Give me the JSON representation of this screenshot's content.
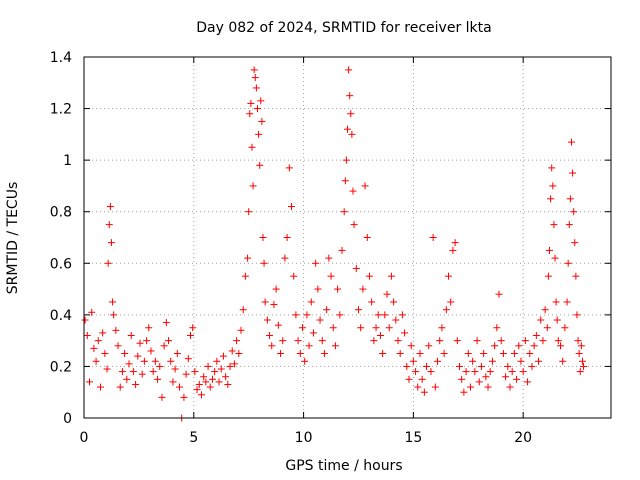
{
  "chart_data": {
    "type": "scatter",
    "title": "Day 082 of 2024, SRMTID for receiver lkta",
    "xlabel": "GPS time / hours",
    "ylabel": "SRMTID / TECUs",
    "xlim": [
      0,
      24
    ],
    "ylim": [
      0,
      1.4
    ],
    "xticks": [
      0,
      5,
      10,
      15,
      20
    ],
    "xtick_labels": [
      "0",
      "5",
      "10",
      "15",
      "20"
    ],
    "yticks": [
      0,
      0.2,
      0.4,
      0.6,
      0.8,
      1.0,
      1.2,
      1.4
    ],
    "ytick_labels": [
      "0",
      "0.2",
      "0.4",
      "0.6",
      "0.8",
      "1",
      "1.2",
      "1.4"
    ],
    "grid": true,
    "marker": "+",
    "color": "#ff0000",
    "series": [
      {
        "name": "SRMTID",
        "points": [
          [
            0.05,
            0.38
          ],
          [
            0.15,
            0.32
          ],
          [
            0.25,
            0.14
          ],
          [
            0.35,
            0.41
          ],
          [
            0.45,
            0.27
          ],
          [
            0.55,
            0.22
          ],
          [
            0.65,
            0.3
          ],
          [
            0.75,
            0.12
          ],
          [
            0.85,
            0.33
          ],
          [
            0.95,
            0.25
          ],
          [
            1.05,
            0.19
          ],
          [
            1.1,
            0.6
          ],
          [
            1.15,
            0.75
          ],
          [
            1.2,
            0.82
          ],
          [
            1.25,
            0.68
          ],
          [
            1.3,
            0.45
          ],
          [
            1.35,
            0.4
          ],
          [
            1.45,
            0.34
          ],
          [
            1.55,
            0.28
          ],
          [
            1.65,
            0.12
          ],
          [
            1.75,
            0.18
          ],
          [
            1.85,
            0.25
          ],
          [
            1.95,
            0.15
          ],
          [
            2.05,
            0.21
          ],
          [
            2.15,
            0.32
          ],
          [
            2.25,
            0.18
          ],
          [
            2.35,
            0.13
          ],
          [
            2.45,
            0.24
          ],
          [
            2.55,
            0.29
          ],
          [
            2.65,
            0.17
          ],
          [
            2.75,
            0.22
          ],
          [
            2.85,
            0.3
          ],
          [
            2.95,
            0.35
          ],
          [
            3.05,
            0.26
          ],
          [
            3.15,
            0.18
          ],
          [
            3.25,
            0.22
          ],
          [
            3.35,
            0.15
          ],
          [
            3.45,
            0.2
          ],
          [
            3.55,
            0.08
          ],
          [
            3.65,
            0.28
          ],
          [
            3.75,
            0.37
          ],
          [
            3.85,
            0.3
          ],
          [
            3.95,
            0.22
          ],
          [
            4.05,
            0.14
          ],
          [
            4.15,
            0.19
          ],
          [
            4.25,
            0.25
          ],
          [
            4.35,
            0.12
          ],
          [
            4.45,
            0.0
          ],
          [
            4.55,
            0.08
          ],
          [
            4.65,
            0.17
          ],
          [
            4.75,
            0.23
          ],
          [
            4.85,
            0.32
          ],
          [
            4.95,
            0.35
          ],
          [
            5.05,
            0.18
          ],
          [
            5.15,
            0.11
          ],
          [
            5.25,
            0.13
          ],
          [
            5.35,
            0.09
          ],
          [
            5.45,
            0.16
          ],
          [
            5.55,
            0.14
          ],
          [
            5.65,
            0.2
          ],
          [
            5.75,
            0.12
          ],
          [
            5.85,
            0.15
          ],
          [
            5.95,
            0.18
          ],
          [
            6.05,
            0.22
          ],
          [
            6.15,
            0.14
          ],
          [
            6.25,
            0.19
          ],
          [
            6.35,
            0.24
          ],
          [
            6.45,
            0.16
          ],
          [
            6.55,
            0.13
          ],
          [
            6.65,
            0.2
          ],
          [
            6.75,
            0.26
          ],
          [
            6.85,
            0.21
          ],
          [
            6.95,
            0.3
          ],
          [
            7.05,
            0.25
          ],
          [
            7.15,
            0.34
          ],
          [
            7.25,
            0.42
          ],
          [
            7.35,
            0.55
          ],
          [
            7.45,
            0.62
          ],
          [
            7.5,
            0.8
          ],
          [
            7.55,
            1.18
          ],
          [
            7.6,
            1.22
          ],
          [
            7.65,
            1.05
          ],
          [
            7.7,
            0.9
          ],
          [
            7.75,
            1.35
          ],
          [
            7.8,
            1.32
          ],
          [
            7.85,
            1.28
          ],
          [
            7.9,
            1.2
          ],
          [
            7.95,
            1.1
          ],
          [
            8.0,
            0.98
          ],
          [
            8.05,
            1.23
          ],
          [
            8.1,
            1.15
          ],
          [
            8.15,
            0.7
          ],
          [
            8.2,
            0.6
          ],
          [
            8.25,
            0.45
          ],
          [
            8.35,
            0.38
          ],
          [
            8.45,
            0.32
          ],
          [
            8.55,
            0.28
          ],
          [
            8.65,
            0.44
          ],
          [
            8.75,
            0.5
          ],
          [
            8.85,
            0.36
          ],
          [
            8.95,
            0.25
          ],
          [
            9.05,
            0.3
          ],
          [
            9.15,
            0.62
          ],
          [
            9.25,
            0.7
          ],
          [
            9.35,
            0.97
          ],
          [
            9.45,
            0.82
          ],
          [
            9.55,
            0.55
          ],
          [
            9.65,
            0.4
          ],
          [
            9.75,
            0.3
          ],
          [
            9.85,
            0.25
          ],
          [
            9.95,
            0.35
          ],
          [
            10.05,
            0.22
          ],
          [
            10.15,
            0.4
          ],
          [
            10.25,
            0.28
          ],
          [
            10.35,
            0.45
          ],
          [
            10.45,
            0.33
          ],
          [
            10.55,
            0.6
          ],
          [
            10.65,
            0.5
          ],
          [
            10.75,
            0.38
          ],
          [
            10.85,
            0.3
          ],
          [
            10.95,
            0.25
          ],
          [
            11.05,
            0.42
          ],
          [
            11.15,
            0.62
          ],
          [
            11.25,
            0.55
          ],
          [
            11.35,
            0.35
          ],
          [
            11.45,
            0.28
          ],
          [
            11.55,
            0.5
          ],
          [
            11.65,
            0.4
          ],
          [
            11.75,
            0.65
          ],
          [
            11.85,
            0.8
          ],
          [
            11.9,
            0.92
          ],
          [
            11.95,
            1.0
          ],
          [
            12.0,
            1.12
          ],
          [
            12.05,
            1.35
          ],
          [
            12.1,
            1.25
          ],
          [
            12.15,
            1.18
          ],
          [
            12.2,
            1.1
          ],
          [
            12.25,
            0.88
          ],
          [
            12.3,
            0.75
          ],
          [
            12.4,
            0.58
          ],
          [
            12.5,
            0.42
          ],
          [
            12.6,
            0.35
          ],
          [
            12.7,
            0.5
          ],
          [
            12.8,
            0.9
          ],
          [
            12.9,
            0.7
          ],
          [
            13.0,
            0.55
          ],
          [
            13.1,
            0.45
          ],
          [
            13.2,
            0.3
          ],
          [
            13.3,
            0.35
          ],
          [
            13.4,
            0.4
          ],
          [
            13.5,
            0.32
          ],
          [
            13.6,
            0.25
          ],
          [
            13.7,
            0.4
          ],
          [
            13.8,
            0.48
          ],
          [
            13.9,
            0.35
          ],
          [
            14.0,
            0.55
          ],
          [
            14.1,
            0.45
          ],
          [
            14.2,
            0.38
          ],
          [
            14.3,
            0.3
          ],
          [
            14.4,
            0.25
          ],
          [
            14.5,
            0.4
          ],
          [
            14.6,
            0.33
          ],
          [
            14.7,
            0.2
          ],
          [
            14.8,
            0.15
          ],
          [
            14.9,
            0.28
          ],
          [
            15.0,
            0.22
          ],
          [
            15.1,
            0.18
          ],
          [
            15.2,
            0.12
          ],
          [
            15.3,
            0.25
          ],
          [
            15.4,
            0.15
          ],
          [
            15.5,
            0.1
          ],
          [
            15.6,
            0.2
          ],
          [
            15.7,
            0.28
          ],
          [
            15.8,
            0.18
          ],
          [
            15.9,
            0.7
          ],
          [
            16.0,
            0.12
          ],
          [
            16.1,
            0.22
          ],
          [
            16.2,
            0.3
          ],
          [
            16.3,
            0.35
          ],
          [
            16.4,
            0.25
          ],
          [
            16.5,
            0.42
          ],
          [
            16.6,
            0.55
          ],
          [
            16.7,
            0.45
          ],
          [
            16.8,
            0.65
          ],
          [
            16.9,
            0.68
          ],
          [
            17.0,
            0.3
          ],
          [
            17.1,
            0.2
          ],
          [
            17.2,
            0.15
          ],
          [
            17.3,
            0.1
          ],
          [
            17.4,
            0.18
          ],
          [
            17.5,
            0.25
          ],
          [
            17.6,
            0.12
          ],
          [
            17.7,
            0.22
          ],
          [
            17.8,
            0.18
          ],
          [
            17.9,
            0.3
          ],
          [
            18.0,
            0.14
          ],
          [
            18.1,
            0.2
          ],
          [
            18.2,
            0.25
          ],
          [
            18.3,
            0.16
          ],
          [
            18.4,
            0.12
          ],
          [
            18.5,
            0.18
          ],
          [
            18.6,
            0.22
          ],
          [
            18.7,
            0.28
          ],
          [
            18.8,
            0.35
          ],
          [
            18.9,
            0.48
          ],
          [
            19.0,
            0.3
          ],
          [
            19.1,
            0.25
          ],
          [
            19.2,
            0.16
          ],
          [
            19.3,
            0.2
          ],
          [
            19.4,
            0.12
          ],
          [
            19.5,
            0.18
          ],
          [
            19.6,
            0.25
          ],
          [
            19.7,
            0.15
          ],
          [
            19.8,
            0.28
          ],
          [
            19.9,
            0.22
          ],
          [
            20.0,
            0.18
          ],
          [
            20.1,
            0.3
          ],
          [
            20.2,
            0.14
          ],
          [
            20.3,
            0.25
          ],
          [
            20.4,
            0.2
          ],
          [
            20.5,
            0.28
          ],
          [
            20.6,
            0.32
          ],
          [
            20.7,
            0.22
          ],
          [
            20.8,
            0.38
          ],
          [
            20.9,
            0.3
          ],
          [
            21.0,
            0.42
          ],
          [
            21.1,
            0.35
          ],
          [
            21.15,
            0.55
          ],
          [
            21.2,
            0.65
          ],
          [
            21.25,
            0.85
          ],
          [
            21.3,
            0.97
          ],
          [
            21.35,
            0.9
          ],
          [
            21.4,
            0.75
          ],
          [
            21.45,
            0.62
          ],
          [
            21.5,
            0.45
          ],
          [
            21.55,
            0.38
          ],
          [
            21.6,
            0.3
          ],
          [
            21.7,
            0.28
          ],
          [
            21.8,
            0.22
          ],
          [
            21.9,
            0.35
          ],
          [
            22.0,
            0.45
          ],
          [
            22.05,
            0.6
          ],
          [
            22.1,
            0.75
          ],
          [
            22.15,
            0.85
          ],
          [
            22.2,
            1.07
          ],
          [
            22.25,
            0.95
          ],
          [
            22.3,
            0.8
          ],
          [
            22.35,
            0.68
          ],
          [
            22.4,
            0.55
          ],
          [
            22.45,
            0.4
          ],
          [
            22.5,
            0.3
          ],
          [
            22.55,
            0.25
          ],
          [
            22.6,
            0.18
          ],
          [
            22.65,
            0.28
          ],
          [
            22.7,
            0.22
          ],
          [
            22.75,
            0.2
          ]
        ]
      }
    ]
  }
}
